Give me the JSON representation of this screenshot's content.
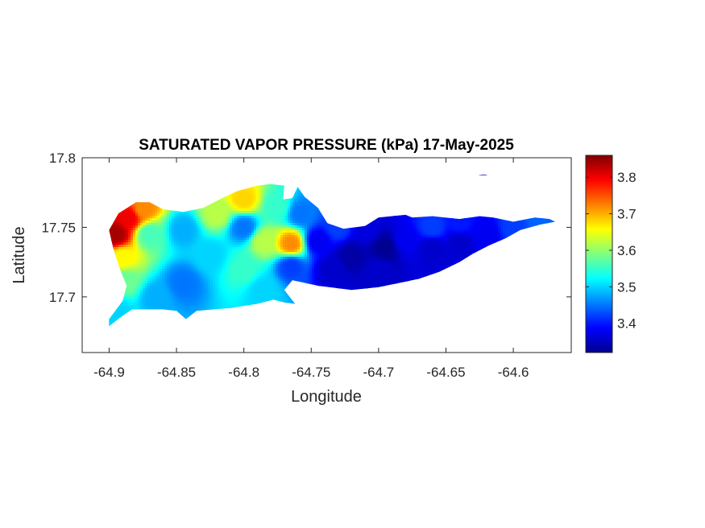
{
  "figure": {
    "title": "SATURATED VAPOR PRESSURE (kPa) 17-May-2025",
    "xlabel": "Longitude",
    "ylabel": "Latitude"
  },
  "axes": {
    "xlim": [
      -64.92,
      -64.557
    ],
    "ylim": [
      17.66,
      17.8
    ],
    "xticks": [
      -64.9,
      -64.85,
      -64.8,
      -64.75,
      -64.7,
      -64.65,
      -64.6
    ],
    "xtick_labels": [
      "-64.9",
      "-64.85",
      "-64.8",
      "-64.75",
      "-64.7",
      "-64.65",
      "-64.6"
    ],
    "yticks": [
      17.7,
      17.75,
      17.8
    ],
    "ytick_labels": [
      "17.7",
      "17.75",
      "17.8"
    ]
  },
  "colorbar": {
    "colormap": "jet",
    "range": [
      3.32,
      3.86
    ],
    "ticks": [
      3.4,
      3.5,
      3.6,
      3.7,
      3.8
    ],
    "tick_labels": [
      "3.4",
      "3.5",
      "3.6",
      "3.7",
      "3.8"
    ]
  },
  "chart_data": {
    "type": "heatmap",
    "title": "SATURATED VAPOR PRESSURE (kPa) 17-May-2025",
    "xlabel": "Longitude",
    "ylabel": "Latitude",
    "units": "kPa",
    "xlim": [
      -64.92,
      -64.557
    ],
    "ylim": [
      17.66,
      17.8
    ],
    "clim": [
      3.32,
      3.86
    ],
    "colormap": "jet",
    "grid": false,
    "island_outline": [
      [
        -64.9,
        17.679
      ],
      [
        -64.892,
        17.685
      ],
      [
        -64.883,
        17.691
      ],
      [
        -64.86,
        17.691
      ],
      [
        -64.85,
        17.69
      ],
      [
        -64.843,
        17.684
      ],
      [
        -64.835,
        17.69
      ],
      [
        -64.81,
        17.692
      ],
      [
        -64.79,
        17.695
      ],
      [
        -64.778,
        17.698
      ],
      [
        -64.77,
        17.696
      ],
      [
        -64.762,
        17.695
      ],
      [
        -64.77,
        17.705
      ],
      [
        -64.764,
        17.712
      ],
      [
        -64.745,
        17.708
      ],
      [
        -64.72,
        17.705
      ],
      [
        -64.7,
        17.707
      ],
      [
        -64.685,
        17.71
      ],
      [
        -64.67,
        17.713
      ],
      [
        -64.655,
        17.718
      ],
      [
        -64.64,
        17.725
      ],
      [
        -64.63,
        17.731
      ],
      [
        -64.618,
        17.737
      ],
      [
        -64.606,
        17.742
      ],
      [
        -64.595,
        17.748
      ],
      [
        -64.58,
        17.752
      ],
      [
        -64.569,
        17.754
      ],
      [
        -64.573,
        17.756
      ],
      [
        -64.584,
        17.757
      ],
      [
        -64.6,
        17.754
      ],
      [
        -64.615,
        17.757
      ],
      [
        -64.625,
        17.758
      ],
      [
        -64.64,
        17.756
      ],
      [
        -64.66,
        17.758
      ],
      [
        -64.675,
        17.757
      ],
      [
        -64.68,
        17.759
      ],
      [
        -64.7,
        17.757
      ],
      [
        -64.71,
        17.751
      ],
      [
        -64.726,
        17.749
      ],
      [
        -64.738,
        17.753
      ],
      [
        -64.745,
        17.764
      ],
      [
        -64.755,
        17.772
      ],
      [
        -64.76,
        17.779
      ],
      [
        -64.764,
        17.771
      ],
      [
        -64.771,
        17.77
      ],
      [
        -64.77,
        17.78
      ],
      [
        -64.78,
        17.781
      ],
      [
        -64.79,
        17.78
      ],
      [
        -64.805,
        17.776
      ],
      [
        -64.816,
        17.771
      ],
      [
        -64.83,
        17.764
      ],
      [
        -64.845,
        17.761
      ],
      [
        -64.86,
        17.763
      ],
      [
        -64.87,
        17.768
      ],
      [
        -64.88,
        17.768
      ],
      [
        -64.893,
        17.76
      ],
      [
        -64.9,
        17.748
      ],
      [
        -64.897,
        17.735
      ],
      [
        -64.892,
        17.72
      ],
      [
        -64.887,
        17.708
      ],
      [
        -64.89,
        17.697
      ],
      [
        -64.9,
        17.684
      ]
    ],
    "islet_outline": [
      [
        -64.626,
        17.7875
      ],
      [
        -64.622,
        17.788
      ],
      [
        -64.619,
        17.7875
      ]
    ],
    "sample_points": [
      {
        "lon": -64.895,
        "lat": 17.745,
        "value": 3.84
      },
      {
        "lon": -64.885,
        "lat": 17.757,
        "value": 3.8
      },
      {
        "lon": -64.875,
        "lat": 17.763,
        "value": 3.72
      },
      {
        "lon": -64.89,
        "lat": 17.728,
        "value": 3.66
      },
      {
        "lon": -64.888,
        "lat": 17.712,
        "value": 3.58
      },
      {
        "lon": -64.895,
        "lat": 17.69,
        "value": 3.5
      },
      {
        "lon": -64.87,
        "lat": 17.745,
        "value": 3.56
      },
      {
        "lon": -64.845,
        "lat": 17.748,
        "value": 3.48
      },
      {
        "lon": -64.845,
        "lat": 17.71,
        "value": 3.45
      },
      {
        "lon": -64.865,
        "lat": 17.7,
        "value": 3.48
      },
      {
        "lon": -64.825,
        "lat": 17.73,
        "value": 3.5
      },
      {
        "lon": -64.82,
        "lat": 17.76,
        "value": 3.62
      },
      {
        "lon": -64.8,
        "lat": 17.77,
        "value": 3.68
      },
      {
        "lon": -64.8,
        "lat": 17.75,
        "value": 3.45
      },
      {
        "lon": -64.785,
        "lat": 17.74,
        "value": 3.62
      },
      {
        "lon": -64.8,
        "lat": 17.72,
        "value": 3.55
      },
      {
        "lon": -64.765,
        "lat": 17.738,
        "value": 3.72
      },
      {
        "lon": -64.765,
        "lat": 17.722,
        "value": 3.42
      },
      {
        "lon": -64.775,
        "lat": 17.765,
        "value": 3.55
      },
      {
        "lon": -64.785,
        "lat": 17.705,
        "value": 3.5
      },
      {
        "lon": -64.758,
        "lat": 17.76,
        "value": 3.45
      },
      {
        "lon": -64.745,
        "lat": 17.74,
        "value": 3.38
      },
      {
        "lon": -64.735,
        "lat": 17.72,
        "value": 3.36
      },
      {
        "lon": -64.72,
        "lat": 17.73,
        "value": 3.34
      },
      {
        "lon": -64.695,
        "lat": 17.735,
        "value": 3.33
      },
      {
        "lon": -64.7,
        "lat": 17.72,
        "value": 3.36
      },
      {
        "lon": -64.68,
        "lat": 17.74,
        "value": 3.38
      },
      {
        "lon": -64.66,
        "lat": 17.735,
        "value": 3.36
      },
      {
        "lon": -64.66,
        "lat": 17.75,
        "value": 3.42
      },
      {
        "lon": -64.64,
        "lat": 17.74,
        "value": 3.36
      },
      {
        "lon": -64.64,
        "lat": 17.752,
        "value": 3.4
      },
      {
        "lon": -64.62,
        "lat": 17.745,
        "value": 3.38
      },
      {
        "lon": -64.6,
        "lat": 17.75,
        "value": 3.42
      },
      {
        "lon": -64.58,
        "lat": 17.754,
        "value": 3.44
      },
      {
        "lon": -64.73,
        "lat": 17.75,
        "value": 3.42
      },
      {
        "lon": -64.71,
        "lat": 17.748,
        "value": 3.37
      },
      {
        "lon": -64.622,
        "lat": 17.788,
        "value": 3.36
      }
    ]
  }
}
